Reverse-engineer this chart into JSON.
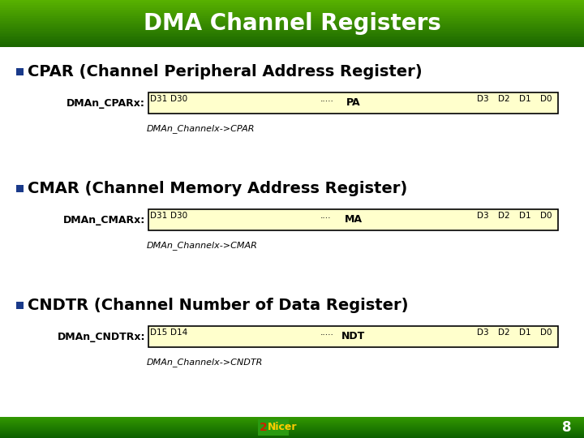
{
  "title": "DMA Channel Registers",
  "title_bg": "#2e8b00",
  "title_fg": "#ffffff",
  "slide_bg": "#ffffff",
  "footer_bg": "#1a8a00",
  "footer_text": "8",
  "bullet_color": "#1a3a8a",
  "register_bg": "#ffffcc",
  "register_border": "#000000",
  "items": [
    {
      "bullet": "CPAR (Channel Peripheral Address Register)",
      "bit_high": "D31",
      "bit_high2": "D30",
      "bit_dots": ".....",
      "bit_low3": "D3",
      "bit_low2": "D2",
      "bit_low1": "D1",
      "bit_low0": "D0",
      "reg_label": "DMAn_CPARx:",
      "reg_content": "PA",
      "c_label": "DMAn_Channelx->CPAR"
    },
    {
      "bullet": "CMAR (Channel Memory Address Register)",
      "bit_high": "D31",
      "bit_high2": "D30",
      "bit_dots": "....",
      "bit_low3": "D3",
      "bit_low2": "D2",
      "bit_low1": "D1",
      "bit_low0": "D0",
      "reg_label": "DMAn_CMARx:",
      "reg_content": "MA",
      "c_label": "DMAn_Channelx->CMAR"
    },
    {
      "bullet": "CNDTR (Channel Number of Data Register)",
      "bit_high": "D15",
      "bit_high2": "D14",
      "bit_dots": ".....",
      "bit_low3": "D3",
      "bit_low2": "D2",
      "bit_low1": "D1",
      "bit_low0": "D0",
      "reg_label": "DMAn_CNDTRx:",
      "reg_content": "NDT",
      "c_label": "DMAn_Channelx->CNDTR"
    }
  ]
}
